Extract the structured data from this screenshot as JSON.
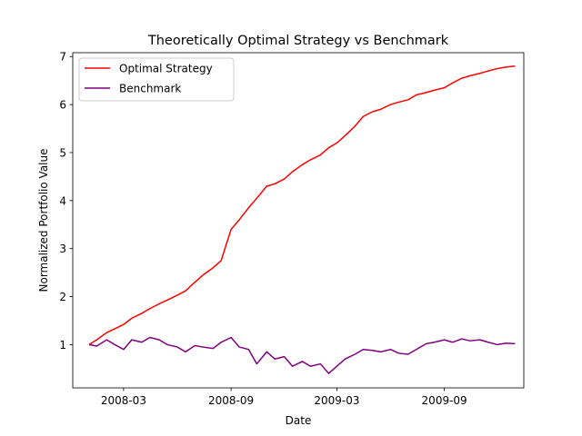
{
  "chart_data": {
    "type": "line",
    "title": "Theoretically Optimal Strategy vs Benchmark",
    "xlabel": "Date",
    "ylabel": "Normalized Portfolio Value",
    "xlim": [
      "2007-12-05",
      "2010-01-15"
    ],
    "ylim": [
      0.1,
      7.08
    ],
    "grid": false,
    "legend_position": "top-left",
    "x_ticks": [
      "2008-03-01",
      "2008-09-01",
      "2009-03-01",
      "2009-09-01"
    ],
    "x_tick_labels": [
      "2008-03",
      "2008-09",
      "2009-03",
      "2009-09"
    ],
    "y_ticks": [
      1,
      2,
      3,
      4,
      5,
      6,
      7
    ],
    "y_tick_labels": [
      "1",
      "2",
      "3",
      "4",
      "5",
      "6",
      "7"
    ],
    "series": [
      {
        "name": "Optimal Strategy",
        "color": "#ff0000",
        "x": [
          "2008-01-02",
          "2008-01-15",
          "2008-02-01",
          "2008-02-15",
          "2008-03-01",
          "2008-03-15",
          "2008-04-01",
          "2008-04-15",
          "2008-05-01",
          "2008-05-15",
          "2008-06-01",
          "2008-06-15",
          "2008-07-01",
          "2008-07-15",
          "2008-08-01",
          "2008-08-15",
          "2008-09-01",
          "2008-09-15",
          "2008-10-01",
          "2008-10-15",
          "2008-11-01",
          "2008-11-15",
          "2008-12-01",
          "2008-12-15",
          "2009-01-01",
          "2009-01-15",
          "2009-02-01",
          "2009-02-15",
          "2009-03-01",
          "2009-03-15",
          "2009-04-01",
          "2009-04-15",
          "2009-05-01",
          "2009-05-15",
          "2009-06-01",
          "2009-06-15",
          "2009-07-01",
          "2009-07-15",
          "2009-08-01",
          "2009-08-15",
          "2009-09-01",
          "2009-09-15",
          "2009-10-01",
          "2009-10-15",
          "2009-11-01",
          "2009-11-15",
          "2009-12-01",
          "2009-12-15",
          "2009-12-31"
        ],
        "values": [
          1.0,
          1.1,
          1.25,
          1.33,
          1.42,
          1.55,
          1.65,
          1.75,
          1.85,
          1.93,
          2.03,
          2.12,
          2.3,
          2.45,
          2.6,
          2.75,
          3.4,
          3.6,
          3.85,
          4.05,
          4.3,
          4.35,
          4.45,
          4.6,
          4.75,
          4.85,
          4.95,
          5.1,
          5.2,
          5.35,
          5.55,
          5.75,
          5.85,
          5.9,
          6.0,
          6.05,
          6.1,
          6.2,
          6.25,
          6.3,
          6.35,
          6.45,
          6.55,
          6.6,
          6.65,
          6.7,
          6.75,
          6.78,
          6.8
        ]
      },
      {
        "name": "Benchmark",
        "color": "#800080",
        "x": [
          "2008-01-02",
          "2008-01-15",
          "2008-02-01",
          "2008-02-15",
          "2008-03-01",
          "2008-03-15",
          "2008-04-01",
          "2008-04-15",
          "2008-05-01",
          "2008-05-15",
          "2008-06-01",
          "2008-06-15",
          "2008-07-01",
          "2008-07-15",
          "2008-08-01",
          "2008-08-15",
          "2008-09-01",
          "2008-09-15",
          "2008-10-01",
          "2008-10-15",
          "2008-11-01",
          "2008-11-15",
          "2008-12-01",
          "2008-12-15",
          "2009-01-01",
          "2009-01-15",
          "2009-02-01",
          "2009-02-15",
          "2009-03-01",
          "2009-03-15",
          "2009-04-01",
          "2009-04-15",
          "2009-05-01",
          "2009-05-15",
          "2009-06-01",
          "2009-06-15",
          "2009-07-01",
          "2009-07-15",
          "2009-08-01",
          "2009-08-15",
          "2009-09-01",
          "2009-09-15",
          "2009-10-01",
          "2009-10-15",
          "2009-11-01",
          "2009-11-15",
          "2009-12-01",
          "2009-12-15",
          "2009-12-31"
        ],
        "values": [
          1.0,
          0.97,
          1.1,
          1.0,
          0.9,
          1.1,
          1.05,
          1.15,
          1.1,
          1.0,
          0.95,
          0.85,
          0.98,
          0.95,
          0.92,
          1.05,
          1.15,
          0.95,
          0.9,
          0.6,
          0.85,
          0.7,
          0.75,
          0.55,
          0.65,
          0.55,
          0.6,
          0.4,
          0.55,
          0.7,
          0.8,
          0.9,
          0.88,
          0.85,
          0.9,
          0.82,
          0.8,
          0.9,
          1.02,
          1.05,
          1.1,
          1.05,
          1.12,
          1.08,
          1.1,
          1.05,
          1.0,
          1.03,
          1.02
        ]
      }
    ]
  }
}
